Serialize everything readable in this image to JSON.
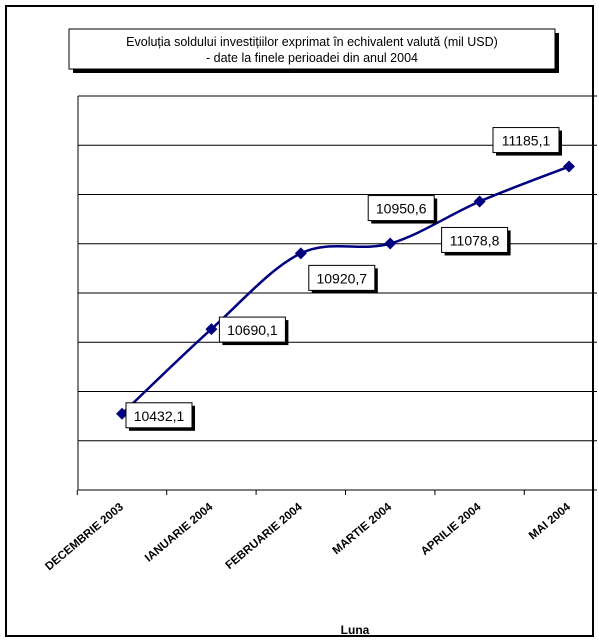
{
  "chart_data": {
    "type": "line",
    "title_lines": [
      "Evoluția soldului investițiilor exprimat în echivalent valută (mil USD)",
      "- date la finele perioadei din anul 2004"
    ],
    "xlabel": "Luna",
    "ylabel": "",
    "categories": [
      "DECEMBRIE 2003",
      "IANUARIE 2004",
      "FEBRUARIE 2004",
      "MARTIE 2004",
      "APRILIE 2004",
      "MAI 2004"
    ],
    "values": [
      10432.1,
      10690.1,
      10920.7,
      10950.6,
      11078.8,
      11185.1
    ],
    "data_labels": [
      "10432,1",
      "10690,1",
      "10920,7",
      "10950,6",
      "11078,8",
      "11185,1"
    ],
    "ylim": [
      10200,
      11400
    ],
    "y_gridline_step": 150,
    "y_tick_labels_shown": false,
    "grid": true,
    "line_color": "#000080",
    "marker": "diamond",
    "smoothed": true
  }
}
